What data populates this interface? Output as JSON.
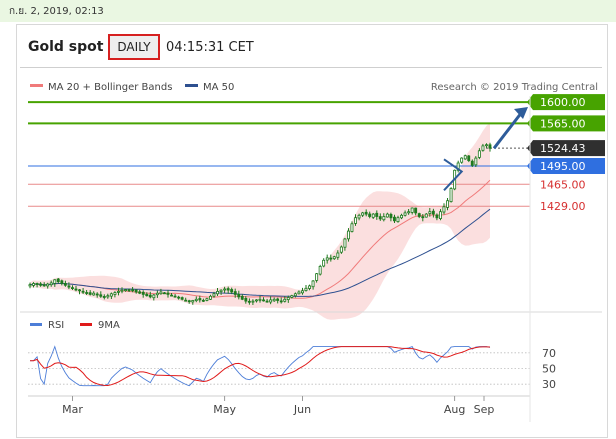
{
  "top_bar": {
    "date_text": "ก.ย. 2, 2019, 02:13"
  },
  "header": {
    "title": "Gold spot",
    "timeframe": "DAILY",
    "time": "04:15:31 CET"
  },
  "legend": {
    "ma20_label": "MA 20 + Bollinger Bands",
    "ma50_label": "MA 50",
    "credit": "Research © 2019 Trading Central"
  },
  "rsi_legend": {
    "rsi_label": "RSI",
    "ma_label": "9MA"
  },
  "colors": {
    "green_level": "#47a300",
    "blue_level": "#2f6fe0",
    "red_level": "#d63030",
    "current_price": "#2f2f2f",
    "arrow": "#2e5c9a",
    "candles": "#1e7a1e",
    "bb_fill": "#fbdcdc",
    "ma20": "#f07a7a",
    "ma50": "#2e5090",
    "rsi": "#4d7ed8",
    "rsi_ma": "#e01a1a"
  },
  "chart_data": [
    {
      "type": "candlestick",
      "title": "Gold spot",
      "timeframe": "DAILY",
      "x_tick_labels": [
        "Mar",
        "May",
        "Jun",
        "Aug",
        "Sep"
      ],
      "price_range_approx": [
        1265,
        1610
      ],
      "levels": [
        {
          "value": "1600.00",
          "kind": "resistance",
          "color": "green"
        },
        {
          "value": "1565.00",
          "kind": "resistance",
          "color": "green"
        },
        {
          "value": "1524.43",
          "kind": "current",
          "color": "dark"
        },
        {
          "value": "1495.00",
          "kind": "pivot",
          "color": "blue"
        },
        {
          "value": "1465.00",
          "kind": "support",
          "color": "red"
        },
        {
          "value": "1429.00",
          "kind": "support",
          "color": "red"
        }
      ],
      "close_series": [
        1300,
        1302,
        1301,
        1299,
        1298,
        1301,
        1303,
        1308,
        1305,
        1302,
        1299,
        1296,
        1294,
        1292,
        1290,
        1288,
        1286,
        1284,
        1286,
        1283,
        1281,
        1279,
        1282,
        1285,
        1287,
        1289,
        1291,
        1292,
        1291,
        1290,
        1288,
        1286,
        1284,
        1282,
        1280,
        1283,
        1286,
        1288,
        1286,
        1284,
        1282,
        1280,
        1278,
        1276,
        1274,
        1272,
        1274,
        1276,
        1275,
        1273,
        1277,
        1281,
        1285,
        1289,
        1291,
        1293,
        1291,
        1288,
        1284,
        1280,
        1276,
        1273,
        1272,
        1273,
        1275,
        1276,
        1274,
        1273,
        1275,
        1276,
        1274,
        1273,
        1276,
        1279,
        1282,
        1285,
        1288,
        1290,
        1294,
        1298,
        1306,
        1318,
        1330,
        1340,
        1344,
        1343,
        1346,
        1352,
        1362,
        1375,
        1388,
        1400,
        1410,
        1414,
        1418,
        1416,
        1412,
        1416,
        1412,
        1408,
        1412,
        1416,
        1410,
        1405,
        1410,
        1414,
        1418,
        1420,
        1426,
        1418,
        1412,
        1410,
        1416,
        1420,
        1416,
        1410,
        1420,
        1428,
        1438,
        1458,
        1488,
        1500,
        1508,
        1512,
        1504,
        1496,
        1508,
        1520,
        1528,
        1530,
        1524
      ],
      "overlays": [
        "MA 20 + Bollinger Bands",
        "MA 50"
      ]
    },
    {
      "type": "line",
      "title": "RSI",
      "series": [
        {
          "name": "RSI"
        },
        {
          "name": "9MA"
        }
      ],
      "y_tick_labels": [
        "70",
        "50",
        "30"
      ],
      "ylim": [
        20,
        80
      ]
    }
  ]
}
